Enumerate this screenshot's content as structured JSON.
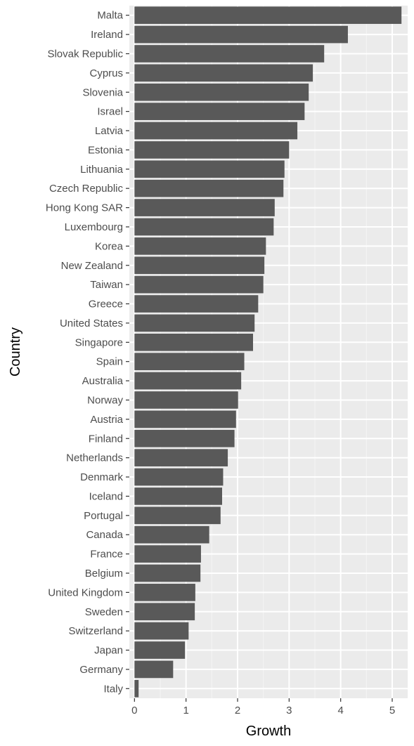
{
  "chart_data": {
    "type": "bar",
    "orientation": "horizontal",
    "xlabel": "Growth",
    "ylabel": "Country",
    "xlim": [
      -0.1,
      5.3
    ],
    "xticks": [
      0,
      1,
      2,
      3,
      4,
      5
    ],
    "grid": true,
    "colors": {
      "bar": "#595959",
      "panel": "#ebebeb",
      "grid_major": "#ffffff",
      "tick_label": "#4d4d4d",
      "axis_title": "#000000"
    },
    "categories": [
      "Malta",
      "Ireland",
      "Slovak Republic",
      "Cyprus",
      "Slovenia",
      "Israel",
      "Latvia",
      "Estonia",
      "Lithuania",
      "Czech Republic",
      "Hong Kong SAR",
      "Luxembourg",
      "Korea",
      "New Zealand",
      "Taiwan",
      "Greece",
      "United States",
      "Singapore",
      "Spain",
      "Australia",
      "Norway",
      "Austria",
      "Finland",
      "Netherlands",
      "Denmark",
      "Iceland",
      "Portugal",
      "Canada",
      "France",
      "Belgium",
      "United Kingdom",
      "Sweden",
      "Switzerland",
      "Japan",
      "Germany",
      "Italy"
    ],
    "values": [
      5.18,
      4.14,
      3.68,
      3.46,
      3.38,
      3.3,
      3.16,
      3.0,
      2.91,
      2.89,
      2.72,
      2.7,
      2.55,
      2.52,
      2.5,
      2.4,
      2.33,
      2.3,
      2.13,
      2.07,
      2.01,
      1.97,
      1.94,
      1.81,
      1.72,
      1.7,
      1.67,
      1.45,
      1.29,
      1.28,
      1.18,
      1.17,
      1.05,
      0.98,
      0.75,
      0.08
    ]
  }
}
